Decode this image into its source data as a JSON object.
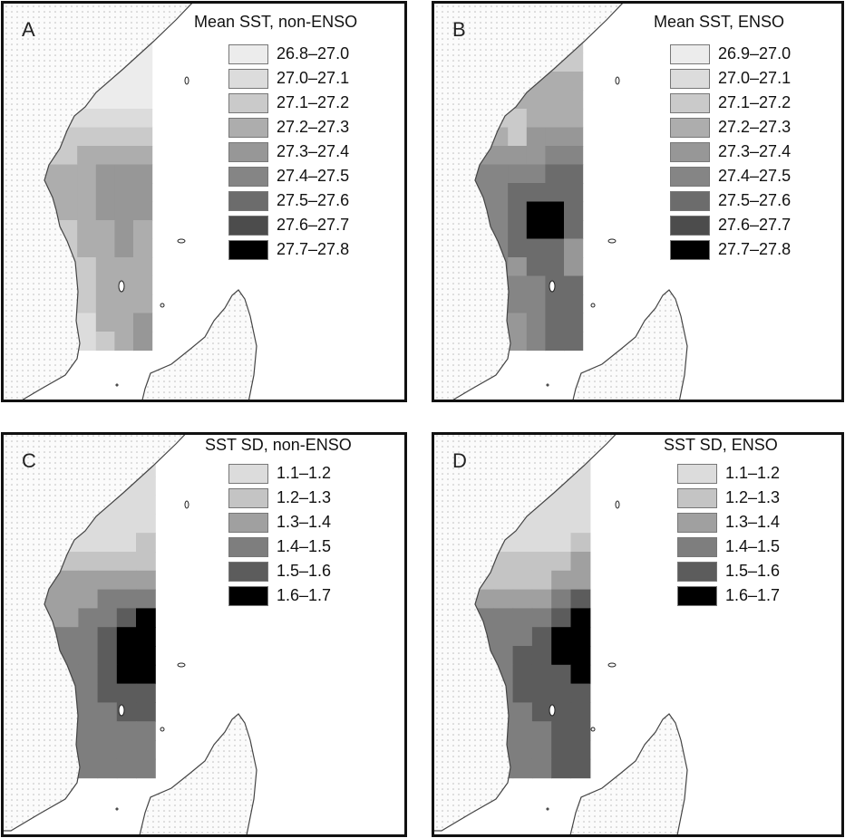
{
  "chart_data": [
    {
      "type": "heatmap",
      "panel": "A",
      "title": "Mean SST, non-ENSO",
      "legend": [
        "26.8–27.0",
        "27.0–27.1",
        "27.1–27.2",
        "27.2–27.3",
        "27.3–27.4",
        "27.4–27.5",
        "27.5–27.6",
        "27.6–27.7",
        "27.7–27.8"
      ],
      "colors": [
        "#ececec",
        "#dcdcdc",
        "#cacaca",
        "#adadad",
        "#979797",
        "#858585",
        "#6c6c6c",
        "#4c4c4c",
        "#000000"
      ],
      "grid": [
        [
          0,
          0,
          0,
          0,
          0,
          0
        ],
        [
          0,
          0,
          0,
          0,
          0,
          0
        ],
        [
          0,
          0,
          0,
          0,
          0,
          0
        ],
        [
          0,
          0,
          0,
          0,
          0,
          0
        ],
        [
          1,
          1,
          1,
          1,
          1,
          1
        ],
        [
          2,
          2,
          2,
          2,
          2,
          2
        ],
        [
          2,
          2,
          3,
          3,
          3,
          3
        ],
        [
          3,
          3,
          3,
          4,
          4,
          4
        ],
        [
          3,
          3,
          3,
          4,
          4,
          4
        ],
        [
          3,
          3,
          3,
          4,
          4,
          4
        ],
        [
          2,
          2,
          3,
          3,
          4,
          3
        ],
        [
          2,
          2,
          3,
          3,
          4,
          3
        ],
        [
          2,
          2,
          2,
          3,
          3,
          3
        ],
        [
          2,
          2,
          2,
          3,
          3,
          3
        ],
        [
          2,
          2,
          2,
          3,
          3,
          3
        ],
        [
          1,
          1,
          1,
          3,
          3,
          4
        ],
        [
          1,
          1,
          1,
          2,
          3,
          4
        ]
      ]
    },
    {
      "type": "heatmap",
      "panel": "B",
      "title": "Mean SST, ENSO",
      "legend": [
        "26.9–27.0",
        "27.0–27.1",
        "27.1–27.2",
        "27.2–27.3",
        "27.3–27.4",
        "27.4–27.5",
        "27.5–27.6",
        "27.6–27.7",
        "27.7–27.8"
      ],
      "colors": [
        "#ececec",
        "#dcdcdc",
        "#cacaca",
        "#adadad",
        "#979797",
        "#858585",
        "#6c6c6c",
        "#4c4c4c",
        "#000000"
      ],
      "grid": [
        [
          2,
          2,
          2,
          2,
          2,
          2
        ],
        [
          2,
          2,
          2,
          2,
          2,
          2
        ],
        [
          3,
          3,
          3,
          3,
          3,
          3
        ],
        [
          3,
          3,
          3,
          3,
          3,
          3
        ],
        [
          2,
          2,
          2,
          3,
          3,
          3
        ],
        [
          3,
          3,
          2,
          4,
          4,
          4
        ],
        [
          4,
          4,
          4,
          4,
          5,
          5
        ],
        [
          5,
          5,
          5,
          5,
          6,
          6
        ],
        [
          5,
          5,
          6,
          6,
          6,
          6
        ],
        [
          5,
          5,
          6,
          8,
          8,
          6
        ],
        [
          5,
          5,
          6,
          8,
          8,
          6
        ],
        [
          5,
          5,
          6,
          6,
          6,
          4
        ],
        [
          5,
          5,
          4,
          6,
          6,
          4
        ],
        [
          5,
          5,
          5,
          5,
          6,
          6
        ],
        [
          5,
          5,
          5,
          5,
          6,
          6
        ],
        [
          4,
          4,
          4,
          5,
          6,
          6
        ],
        [
          4,
          4,
          4,
          5,
          6,
          6
        ]
      ]
    },
    {
      "type": "heatmap",
      "panel": "C",
      "title": "SST SD, non-ENSO",
      "legend": [
        "1.1–1.2",
        "1.2–1.3",
        "1.3–1.4",
        "1.4–1.5",
        "1.5–1.6",
        "1.6–1.7"
      ],
      "colors": [
        "#dcdcdc",
        "#c4c4c4",
        "#a0a0a0",
        "#7e7e7e",
        "#5c5c5c",
        "#000000"
      ],
      "grid": [
        [
          0,
          0,
          0,
          0,
          0,
          0
        ],
        [
          0,
          0,
          0,
          0,
          0,
          0
        ],
        [
          0,
          0,
          0,
          0,
          0,
          0
        ],
        [
          0,
          0,
          0,
          0,
          0,
          0
        ],
        [
          0,
          0,
          0,
          0,
          0,
          1
        ],
        [
          1,
          1,
          1,
          1,
          1,
          1
        ],
        [
          2,
          2,
          2,
          2,
          2,
          2
        ],
        [
          2,
          2,
          2,
          3,
          3,
          3
        ],
        [
          2,
          2,
          3,
          3,
          4,
          5
        ],
        [
          3,
          3,
          3,
          4,
          5,
          5
        ],
        [
          3,
          3,
          3,
          4,
          5,
          5
        ],
        [
          3,
          3,
          3,
          4,
          5,
          5
        ],
        [
          3,
          3,
          3,
          4,
          4,
          4
        ],
        [
          3,
          3,
          3,
          3,
          4,
          4
        ],
        [
          3,
          3,
          3,
          3,
          3,
          3
        ],
        [
          3,
          3,
          3,
          3,
          3,
          3
        ],
        [
          3,
          3,
          3,
          3,
          3,
          3
        ]
      ]
    },
    {
      "type": "heatmap",
      "panel": "D",
      "title": "SST SD, ENSO",
      "legend": [
        "1.1–1.2",
        "1.2–1.3",
        "1.3–1.4",
        "1.4–1.5",
        "1.5–1.6",
        "1.6–1.7"
      ],
      "colors": [
        "#dcdcdc",
        "#c4c4c4",
        "#a0a0a0",
        "#7e7e7e",
        "#5c5c5c",
        "#000000"
      ],
      "grid": [
        [
          0,
          0,
          0,
          0,
          0,
          0
        ],
        [
          0,
          0,
          0,
          0,
          0,
          0
        ],
        [
          0,
          0,
          0,
          0,
          0,
          0
        ],
        [
          0,
          0,
          0,
          0,
          0,
          0
        ],
        [
          0,
          0,
          0,
          0,
          0,
          1
        ],
        [
          1,
          1,
          1,
          1,
          1,
          2
        ],
        [
          1,
          1,
          1,
          1,
          2,
          2
        ],
        [
          2,
          2,
          2,
          2,
          3,
          4
        ],
        [
          3,
          3,
          3,
          3,
          4,
          5
        ],
        [
          3,
          3,
          3,
          4,
          5,
          5
        ],
        [
          3,
          3,
          4,
          4,
          5,
          5
        ],
        [
          3,
          3,
          4,
          4,
          4,
          5
        ],
        [
          3,
          3,
          4,
          4,
          4,
          4
        ],
        [
          3,
          3,
          3,
          4,
          4,
          4
        ],
        [
          3,
          3,
          3,
          3,
          4,
          4
        ],
        [
          3,
          3,
          3,
          3,
          4,
          4
        ],
        [
          3,
          3,
          3,
          3,
          4,
          4
        ]
      ]
    }
  ]
}
